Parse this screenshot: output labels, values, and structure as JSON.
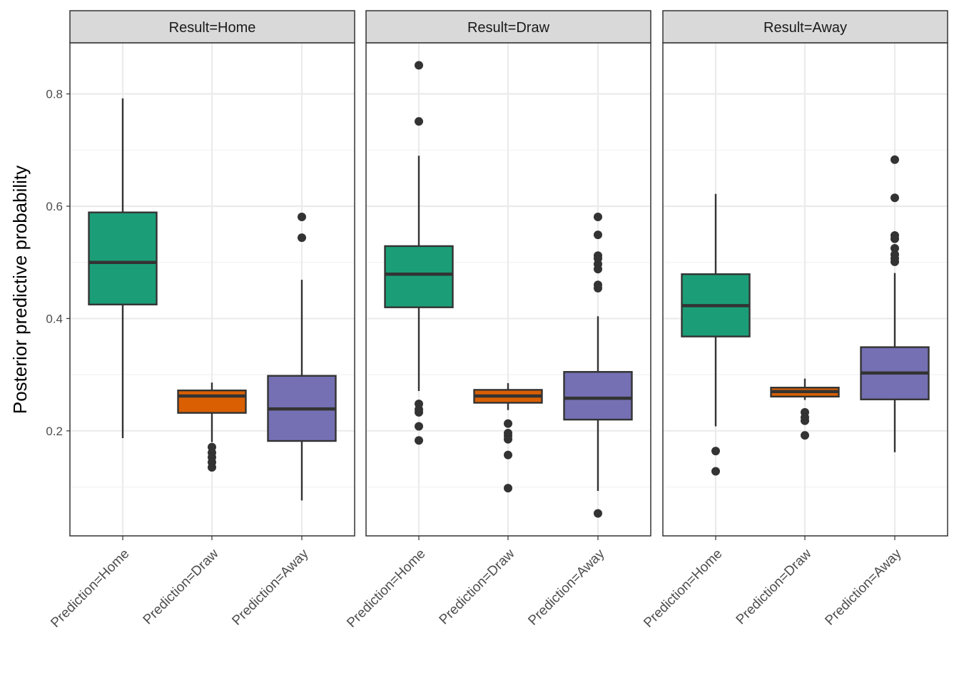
{
  "chart_data": {
    "type": "boxplot",
    "ylabel": "Posterior predictive probability",
    "xlabel": "",
    "ylim": [
      0.013,
      0.891
    ],
    "yticks": [
      0.2,
      0.4,
      0.6,
      0.8
    ],
    "ytick_labels": [
      "0.2",
      "0.4",
      "0.6",
      "0.8"
    ],
    "grid": true,
    "legend": "none",
    "categories": [
      "Prediction=Home",
      "Prediction=Draw",
      "Prediction=Away"
    ],
    "colors": {
      "Prediction=Home": "#1b9e77",
      "Prediction=Draw": "#d95f02",
      "Prediction=Away": "#7570b3"
    },
    "panels": [
      {
        "title": "Result=Home",
        "boxes": [
          {
            "category": "Prediction=Home",
            "whisker_low": 0.187,
            "q1": 0.425,
            "median": 0.5,
            "q3": 0.589,
            "whisker_high": 0.792,
            "outliers": []
          },
          {
            "category": "Prediction=Draw",
            "whisker_low": 0.18,
            "q1": 0.232,
            "median": 0.262,
            "q3": 0.272,
            "whisker_high": 0.286,
            "outliers": [
              0.171,
              0.161,
              0.153,
              0.144,
              0.135
            ]
          },
          {
            "category": "Prediction=Away",
            "whisker_low": 0.076,
            "q1": 0.182,
            "median": 0.239,
            "q3": 0.298,
            "whisker_high": 0.469,
            "outliers": [
              0.581,
              0.544
            ]
          }
        ]
      },
      {
        "title": "Result=Draw",
        "boxes": [
          {
            "category": "Prediction=Home",
            "whisker_low": 0.271,
            "q1": 0.42,
            "median": 0.479,
            "q3": 0.529,
            "whisker_high": 0.69,
            "outliers": [
              0.851,
              0.751,
              0.248,
              0.238,
              0.233,
              0.208,
              0.183
            ]
          },
          {
            "category": "Prediction=Draw",
            "whisker_low": 0.237,
            "q1": 0.25,
            "median": 0.262,
            "q3": 0.273,
            "whisker_high": 0.285,
            "outliers": [
              0.213,
              0.196,
              0.191,
              0.185,
              0.157,
              0.098
            ]
          },
          {
            "category": "Prediction=Away",
            "whisker_low": 0.093,
            "q1": 0.22,
            "median": 0.258,
            "q3": 0.305,
            "whisker_high": 0.404,
            "outliers": [
              0.581,
              0.549,
              0.512,
              0.507,
              0.497,
              0.488,
              0.46,
              0.454,
              0.053
            ]
          }
        ]
      },
      {
        "title": "Result=Away",
        "boxes": [
          {
            "category": "Prediction=Home",
            "whisker_low": 0.208,
            "q1": 0.368,
            "median": 0.423,
            "q3": 0.479,
            "whisker_high": 0.622,
            "outliers": [
              0.164,
              0.128
            ]
          },
          {
            "category": "Prediction=Draw",
            "whisker_low": 0.255,
            "q1": 0.261,
            "median": 0.27,
            "q3": 0.277,
            "whisker_high": 0.293,
            "outliers": [
              0.233,
              0.224,
              0.218,
              0.192
            ]
          },
          {
            "category": "Prediction=Away",
            "whisker_low": 0.162,
            "q1": 0.256,
            "median": 0.303,
            "q3": 0.349,
            "whisker_high": 0.481,
            "outliers": [
              0.683,
              0.615,
              0.548,
              0.542,
              0.525,
              0.514,
              0.507,
              0.501
            ]
          }
        ]
      }
    ]
  }
}
